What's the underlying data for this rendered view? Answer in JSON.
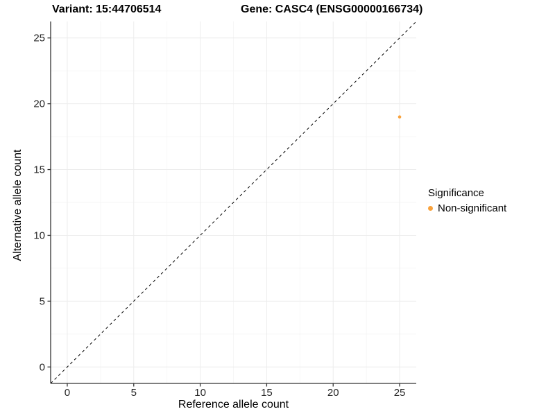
{
  "header": {
    "variant_title": "Variant: 15:44706514",
    "gene_title": "Gene: CASC4 (ENSG00000166734)"
  },
  "chart_data": {
    "type": "scatter",
    "titles": {
      "left": "Variant: 15:44706514",
      "right": "Gene: CASC4 (ENSG00000166734)"
    },
    "xlabel": "Reference allele count",
    "ylabel": "Alternative allele count",
    "xlim": [
      -1.25,
      26.25
    ],
    "ylim": [
      -1.25,
      26.25
    ],
    "x_ticks": [
      0,
      5,
      10,
      15,
      20,
      25
    ],
    "y_ticks": [
      0,
      5,
      10,
      15,
      20,
      25
    ],
    "x_minor_ticks": [
      2.5,
      7.5,
      12.5,
      17.5,
      22.5
    ],
    "y_minor_ticks": [
      2.5,
      7.5,
      12.5,
      17.5,
      22.5
    ],
    "grid": true,
    "legend_position": "right",
    "reference_line": {
      "kind": "identity",
      "linetype": "dashed",
      "color": "#000000"
    },
    "series": [
      {
        "name": "Non-significant",
        "color": "#F9A23C",
        "points": [
          {
            "x": 25,
            "y": 19
          }
        ]
      }
    ],
    "legend": {
      "title": "Significance",
      "entries": [
        {
          "label": "Non-significant",
          "color": "#F9A23C"
        }
      ]
    }
  }
}
